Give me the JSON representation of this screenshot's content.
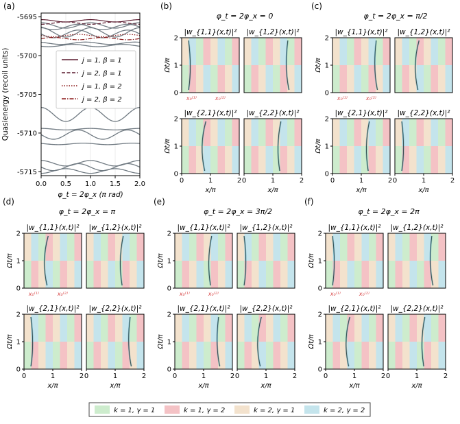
{
  "chart_data": [
    {
      "type": "line",
      "panel_label": "(a)",
      "title": "",
      "xlabel": "φ_t = 2φ_x (π rad)",
      "ylabel": "Quasienergy (recoil units)",
      "xlim": [
        0.0,
        2.0
      ],
      "ylim": [
        -5715.5,
        -5694.5
      ],
      "xticks": [
        "0.0",
        "0.5",
        "1.0",
        "1.5",
        "2.0"
      ],
      "yticks": [
        "-5695",
        "-5700",
        "-5705",
        "-5710",
        "-5715"
      ],
      "ytick_values": [
        -5695,
        -5700,
        -5705,
        -5710,
        -5715
      ],
      "legend": [
        {
          "label": "j = 1, β = 1",
          "style": "solid",
          "color": "#5a1a2e"
        },
        {
          "label": "j = 2, β = 1",
          "style": "dashed",
          "color": "#5a1a2e"
        },
        {
          "label": "j = 1, β = 2",
          "style": "dotted",
          "color": "#8b1a1a"
        },
        {
          "label": "j = 2, β = 2",
          "style": "dashdot",
          "color": "#8b1a1a"
        }
      ],
      "highlighted_series": [
        {
          "name": "j = 1, β = 1",
          "base": -5695.5,
          "amp": 0.15,
          "freq": 2,
          "phase": 0.0
        },
        {
          "name": "j = 2, β = 1",
          "base": -5695.8,
          "amp": 0.15,
          "freq": 2,
          "phase": 1.0
        },
        {
          "name": "j = 1, β = 2",
          "base": -5697.4,
          "amp": 0.15,
          "freq": 2,
          "phase": 0.5
        },
        {
          "name": "j = 2, β = 2",
          "base": -5697.8,
          "amp": 0.15,
          "freq": 2,
          "phase": 1.5
        }
      ],
      "gray_series": [
        {
          "base": -5696.1,
          "amp": 0.35,
          "freq": 2,
          "phase": 0.0
        },
        {
          "base": -5696.3,
          "amp": 0.35,
          "freq": 2,
          "phase": 0.5
        },
        {
          "base": -5697.0,
          "amp": 0.6,
          "freq": 2,
          "phase": 0.0
        },
        {
          "base": -5697.2,
          "amp": 0.5,
          "freq": 2,
          "phase": 0.5
        },
        {
          "base": -5698.4,
          "amp": 0.15,
          "freq": 2,
          "phase": 0.2
        },
        {
          "base": -5698.7,
          "amp": 0.15,
          "freq": 2,
          "phase": 0.7
        },
        {
          "base": -5707.6,
          "amp": 0.9,
          "freq": 2,
          "phase": 0.0
        },
        {
          "base": -5709.5,
          "amp": 0.1,
          "freq": 2,
          "phase": 0.0
        },
        {
          "base": -5710.2,
          "amp": 0.6,
          "freq": 2,
          "phase": 0.5
        },
        {
          "base": -5711.4,
          "amp": 0.1,
          "freq": 2,
          "phase": 0.3
        },
        {
          "base": -5713.9,
          "amp": 0.35,
          "freq": 2,
          "phase": 0.0
        },
        {
          "base": -5714.4,
          "amp": 0.45,
          "freq": 2,
          "phase": 0.5
        },
        {
          "base": -5714.9,
          "amp": 0.3,
          "freq": 2,
          "phase": 1.0
        }
      ]
    },
    {
      "type": "heatmap",
      "panel_label": "(b)",
      "title": "φ_t = 2φ_x = 0",
      "subplots": [
        "|w_{1,1}(x,t)|²",
        "|w_{1,2}(x,t)|²",
        "|w_{2,1}(x,t)|²",
        "|w_{2,2}(x,t)|²"
      ],
      "xlabel": "x/π",
      "ylabel": "Ωt/π",
      "xticks": [
        "0",
        "1",
        "2"
      ],
      "yticks": [
        "0",
        "1",
        "2"
      ],
      "x0_markers": [
        "x₀⁽¹⁾",
        "x₀⁽²⁾"
      ]
    },
    {
      "type": "heatmap",
      "panel_label": "(c)",
      "title": "φ_t = 2φ_x = π/2",
      "subplots": [
        "|w_{1,1}(x,t)|²",
        "|w_{1,2}(x,t)|²",
        "|w_{2,1}(x,t)|²",
        "|w_{2,2}(x,t)|²"
      ],
      "xlabel": "x/π",
      "ylabel": "Ωt/π",
      "xticks": [
        "0",
        "1",
        "2"
      ],
      "yticks": [
        "0",
        "1",
        "2"
      ],
      "x0_markers": [
        "x₀⁽¹⁾",
        "x₀⁽²⁾"
      ]
    },
    {
      "type": "heatmap",
      "panel_label": "(d)",
      "title": "φ_t = 2φ_x = π",
      "subplots": [
        "|w_{1,1}(x,t)|²",
        "|w_{1,2}(x,t)|²",
        "|w_{2,1}(x,t)|²",
        "|w_{2,2}(x,t)|²"
      ],
      "xlabel": "x/π",
      "ylabel": "Ωt/π",
      "xticks": [
        "0",
        "1",
        "2"
      ],
      "yticks": [
        "0",
        "1",
        "2"
      ],
      "x0_markers": [
        "x₀⁽¹⁾",
        "x₀⁽²⁾"
      ]
    },
    {
      "type": "heatmap",
      "panel_label": "(e)",
      "title": "φ_t = 2φ_x = 3π/2",
      "subplots": [
        "|w_{1,1}(x,t)|²",
        "|w_{1,2}(x,t)|²",
        "|w_{2,1}(x,t)|²",
        "|w_{2,2}(x,t)|²"
      ],
      "xlabel": "x/π",
      "ylabel": "Ωt/π",
      "xticks": [
        "0",
        "1",
        "2"
      ],
      "yticks": [
        "0",
        "1",
        "2"
      ],
      "x0_markers": [
        "x₀⁽¹⁾",
        "x₀⁽²⁾"
      ]
    },
    {
      "type": "heatmap",
      "panel_label": "(f)",
      "title": "φ_t = 2φ_x = 2π",
      "subplots": [
        "|w_{1,1}(x,t)|²",
        "|w_{1,2}(x,t)|²",
        "|w_{2,1}(x,t)|²",
        "|w_{2,2}(x,t)|²"
      ],
      "xlabel": "x/π",
      "ylabel": "Ωt/π",
      "xticks": [
        "0",
        "1",
        "2"
      ],
      "yticks": [
        "0",
        "1",
        "2"
      ],
      "x0_markers": [
        "x₀⁽¹⁾",
        "x₀⁽²⁾"
      ]
    }
  ],
  "region_legend": [
    {
      "label": "k = 1, γ = 1",
      "color": "#cdeccd"
    },
    {
      "label": "k = 1, γ = 2",
      "color": "#f4c2c5"
    },
    {
      "label": "k = 2, γ = 1",
      "color": "#f3e2cd"
    },
    {
      "label": "k = 2, γ = 2",
      "color": "#c4e4ec"
    }
  ],
  "colors": {
    "gray_line": "#707a82",
    "marker_red": "#d84848",
    "trace_dark": "#1a2a2a",
    "trace_blue": "#3c8fa8"
  }
}
